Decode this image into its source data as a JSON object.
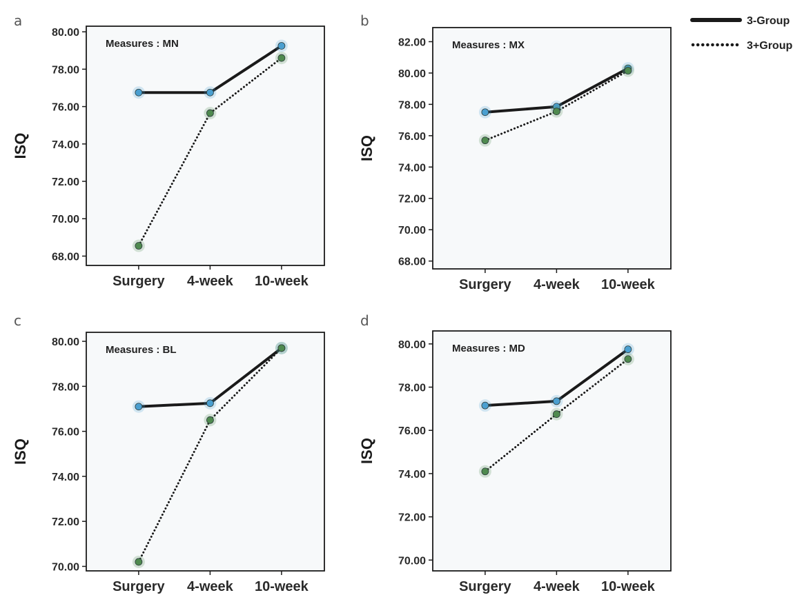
{
  "legend": [
    {
      "label": "3-Group",
      "style": "solid"
    },
    {
      "label": "3+Group",
      "style": "dotted"
    }
  ],
  "colors": {
    "group3": "#4a9fd0",
    "group3plus": "#4f8a4f",
    "line": "#1a1a1a"
  },
  "chart_data": [
    {
      "panel": "a",
      "type": "line",
      "annotation": "Measures : MN",
      "x": [
        "Surgery",
        "4-week",
        "10-week"
      ],
      "ylabel": "ISQ",
      "ylim": [
        67.5,
        80.3
      ],
      "yticks": [
        "68.00",
        "70.00",
        "72.00",
        "74.00",
        "76.00",
        "78.00",
        "80.00"
      ],
      "series": [
        {
          "name": "3-Group",
          "values": [
            76.75,
            76.75,
            79.25
          ]
        },
        {
          "name": "3+Group",
          "values": [
            68.55,
            75.65,
            78.6
          ]
        }
      ]
    },
    {
      "panel": "b",
      "type": "line",
      "annotation": "Measures : MX",
      "x": [
        "Surgery",
        "4-week",
        "10-week"
      ],
      "ylabel": "ISQ",
      "ylim": [
        67.5,
        82.9
      ],
      "yticks": [
        "68.00",
        "70.00",
        "72.00",
        "74.00",
        "76.00",
        "78.00",
        "80.00",
        "82.00"
      ],
      "series": [
        {
          "name": "3-Group",
          "values": [
            77.5,
            77.85,
            80.3
          ]
        },
        {
          "name": "3+Group",
          "values": [
            75.7,
            77.55,
            80.15
          ]
        }
      ]
    },
    {
      "panel": "c",
      "type": "line",
      "annotation": "Measures : BL",
      "x": [
        "Surgery",
        "4-week",
        "10-week"
      ],
      "ylabel": "ISQ",
      "ylim": [
        69.8,
        80.4
      ],
      "yticks": [
        "70.00",
        "72.00",
        "74.00",
        "76.00",
        "78.00",
        "80.00"
      ],
      "series": [
        {
          "name": "3-Group",
          "values": [
            77.1,
            77.25,
            79.7
          ]
        },
        {
          "name": "3+Group",
          "values": [
            70.2,
            76.5,
            79.7
          ]
        }
      ]
    },
    {
      "panel": "d",
      "type": "line",
      "annotation": "Measures : MD",
      "x": [
        "Surgery",
        "4-week",
        "10-week"
      ],
      "ylabel": "ISQ",
      "ylim": [
        69.5,
        80.6
      ],
      "yticks": [
        "70.00",
        "72.00",
        "74.00",
        "76.00",
        "78.00",
        "80.00"
      ],
      "series": [
        {
          "name": "3-Group",
          "values": [
            77.15,
            77.35,
            79.75
          ]
        },
        {
          "name": "3+Group",
          "values": [
            74.1,
            76.75,
            79.3
          ]
        }
      ]
    }
  ]
}
